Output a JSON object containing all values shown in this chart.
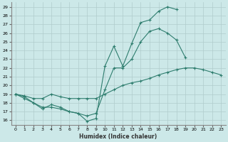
{
  "title": "",
  "xlabel": "Humidex (Indice chaleur)",
  "bg_color": "#cce8e8",
  "line_color": "#2e7d6e",
  "grid_color": "#b0cccc",
  "xlim": [
    -0.5,
    23.5
  ],
  "ylim": [
    15.5,
    29.5
  ],
  "xticks": [
    0,
    1,
    2,
    3,
    4,
    5,
    6,
    7,
    8,
    9,
    10,
    11,
    12,
    13,
    14,
    15,
    16,
    17,
    18,
    19,
    20,
    21,
    22,
    23
  ],
  "yticks": [
    16,
    17,
    18,
    19,
    20,
    21,
    22,
    23,
    24,
    25,
    26,
    27,
    28,
    29
  ],
  "line1_y": [
    19.0,
    18.5,
    18.0,
    17.3,
    17.8,
    17.5,
    17.0,
    16.8,
    15.9,
    16.2,
    22.2,
    24.5,
    22.2,
    24.8,
    27.2,
    27.5,
    28.5,
    29.0,
    28.7,
    null,
    null,
    null,
    null,
    null
  ],
  "line2_y": [
    19.0,
    18.7,
    18.0,
    17.5,
    17.5,
    17.3,
    17.0,
    16.8,
    16.5,
    16.8,
    19.5,
    22.0,
    22.0,
    23.0,
    25.0,
    26.2,
    26.5,
    26.0,
    25.2,
    23.2,
    null,
    null,
    null,
    null
  ],
  "line3_y": [
    19.0,
    18.8,
    18.5,
    18.5,
    19.0,
    18.7,
    18.5,
    18.5,
    18.5,
    18.5,
    19.0,
    19.5,
    20.0,
    20.3,
    20.5,
    20.8,
    21.2,
    21.5,
    21.8,
    22.0,
    22.0,
    21.8,
    21.5,
    21.2
  ]
}
